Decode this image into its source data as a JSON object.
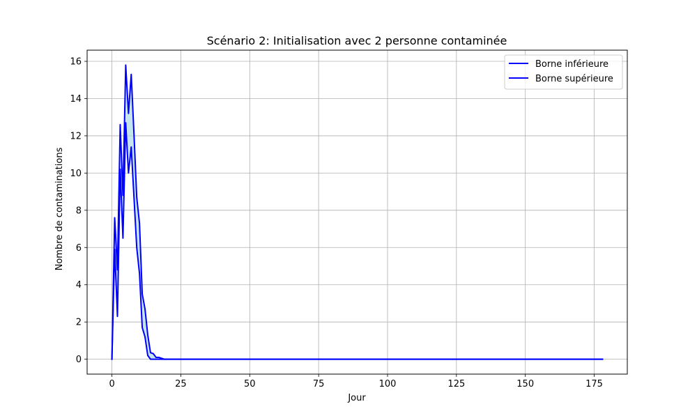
{
  "chart_data": {
    "type": "line",
    "title": "Scénario 2: Initialisation avec 2 personne contaminée",
    "xlabel": "Jour",
    "ylabel": "Nombre de contaminations",
    "xlim": [
      -9,
      187
    ],
    "ylim": [
      -0.8,
      16.6
    ],
    "xticks": [
      0,
      25,
      50,
      75,
      100,
      125,
      150,
      175
    ],
    "yticks": [
      0,
      2,
      4,
      6,
      8,
      10,
      12,
      14,
      16
    ],
    "grid": true,
    "legend_position": "top-right",
    "fill_between": {
      "color": "#add8e6",
      "opacity": 0.7
    },
    "series": [
      {
        "name": "Borne inférieure",
        "color": "#0000ff",
        "x": [
          0,
          1,
          2,
          3,
          4,
          5,
          6,
          7,
          8,
          9,
          10,
          11,
          12,
          13,
          14,
          15,
          16,
          17,
          18,
          19,
          20,
          25,
          50,
          75,
          100,
          125,
          150,
          175,
          178
        ],
        "y": [
          0,
          5.9,
          2.3,
          10.2,
          6.5,
          12.7,
          10.0,
          11.4,
          8.7,
          6.0,
          4.6,
          1.7,
          1.2,
          0.2,
          0.0,
          0.0,
          0.0,
          0.0,
          0.0,
          0.0,
          0,
          0,
          0,
          0,
          0,
          0,
          0,
          0,
          0
        ]
      },
      {
        "name": "Borne supérieure",
        "color": "#0000ff",
        "x": [
          0,
          1,
          2,
          3,
          4,
          5,
          6,
          7,
          8,
          9,
          10,
          11,
          12,
          13,
          14,
          15,
          16,
          17,
          18,
          19,
          20,
          25,
          50,
          75,
          100,
          125,
          150,
          175,
          178
        ],
        "y": [
          0,
          7.6,
          4.8,
          12.6,
          8.8,
          15.8,
          13.2,
          15.3,
          12.1,
          8.7,
          7.3,
          3.5,
          2.7,
          1.3,
          0.35,
          0.3,
          0.1,
          0.1,
          0.05,
          0.0,
          0,
          0,
          0,
          0,
          0,
          0,
          0,
          0,
          0
        ]
      }
    ]
  }
}
